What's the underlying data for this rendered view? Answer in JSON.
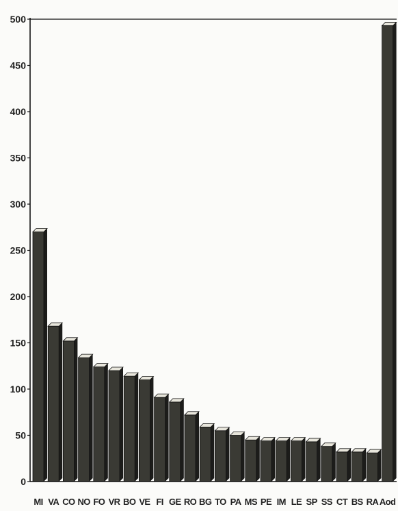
{
  "chart_data": {
    "type": "bar",
    "title": "",
    "xlabel": "",
    "ylabel": "",
    "ylim": [
      0,
      500
    ],
    "yticks": [
      0,
      50,
      100,
      150,
      200,
      250,
      300,
      350,
      400,
      450,
      500
    ],
    "grid": false,
    "categories": [
      "MI",
      "VA",
      "CO",
      "NO",
      "FO",
      "VR",
      "BO",
      "VE",
      "FI",
      "GE",
      "RO",
      "BG",
      "TO",
      "PA",
      "MS",
      "PE",
      "IM",
      "LE",
      "SP",
      "SS",
      "CT",
      "BS",
      "RA",
      "Aod"
    ],
    "values": [
      270,
      168,
      152,
      134,
      124,
      120,
      114,
      110,
      91,
      86,
      72,
      59,
      55,
      50,
      45,
      44,
      44,
      44,
      43,
      38,
      32,
      32,
      31,
      493
    ],
    "colors": {
      "bar_front": "#3a3a34",
      "bar_side": "#1c1c1a",
      "bar_top": "#e8e6dc",
      "axis": "#111111"
    }
  }
}
